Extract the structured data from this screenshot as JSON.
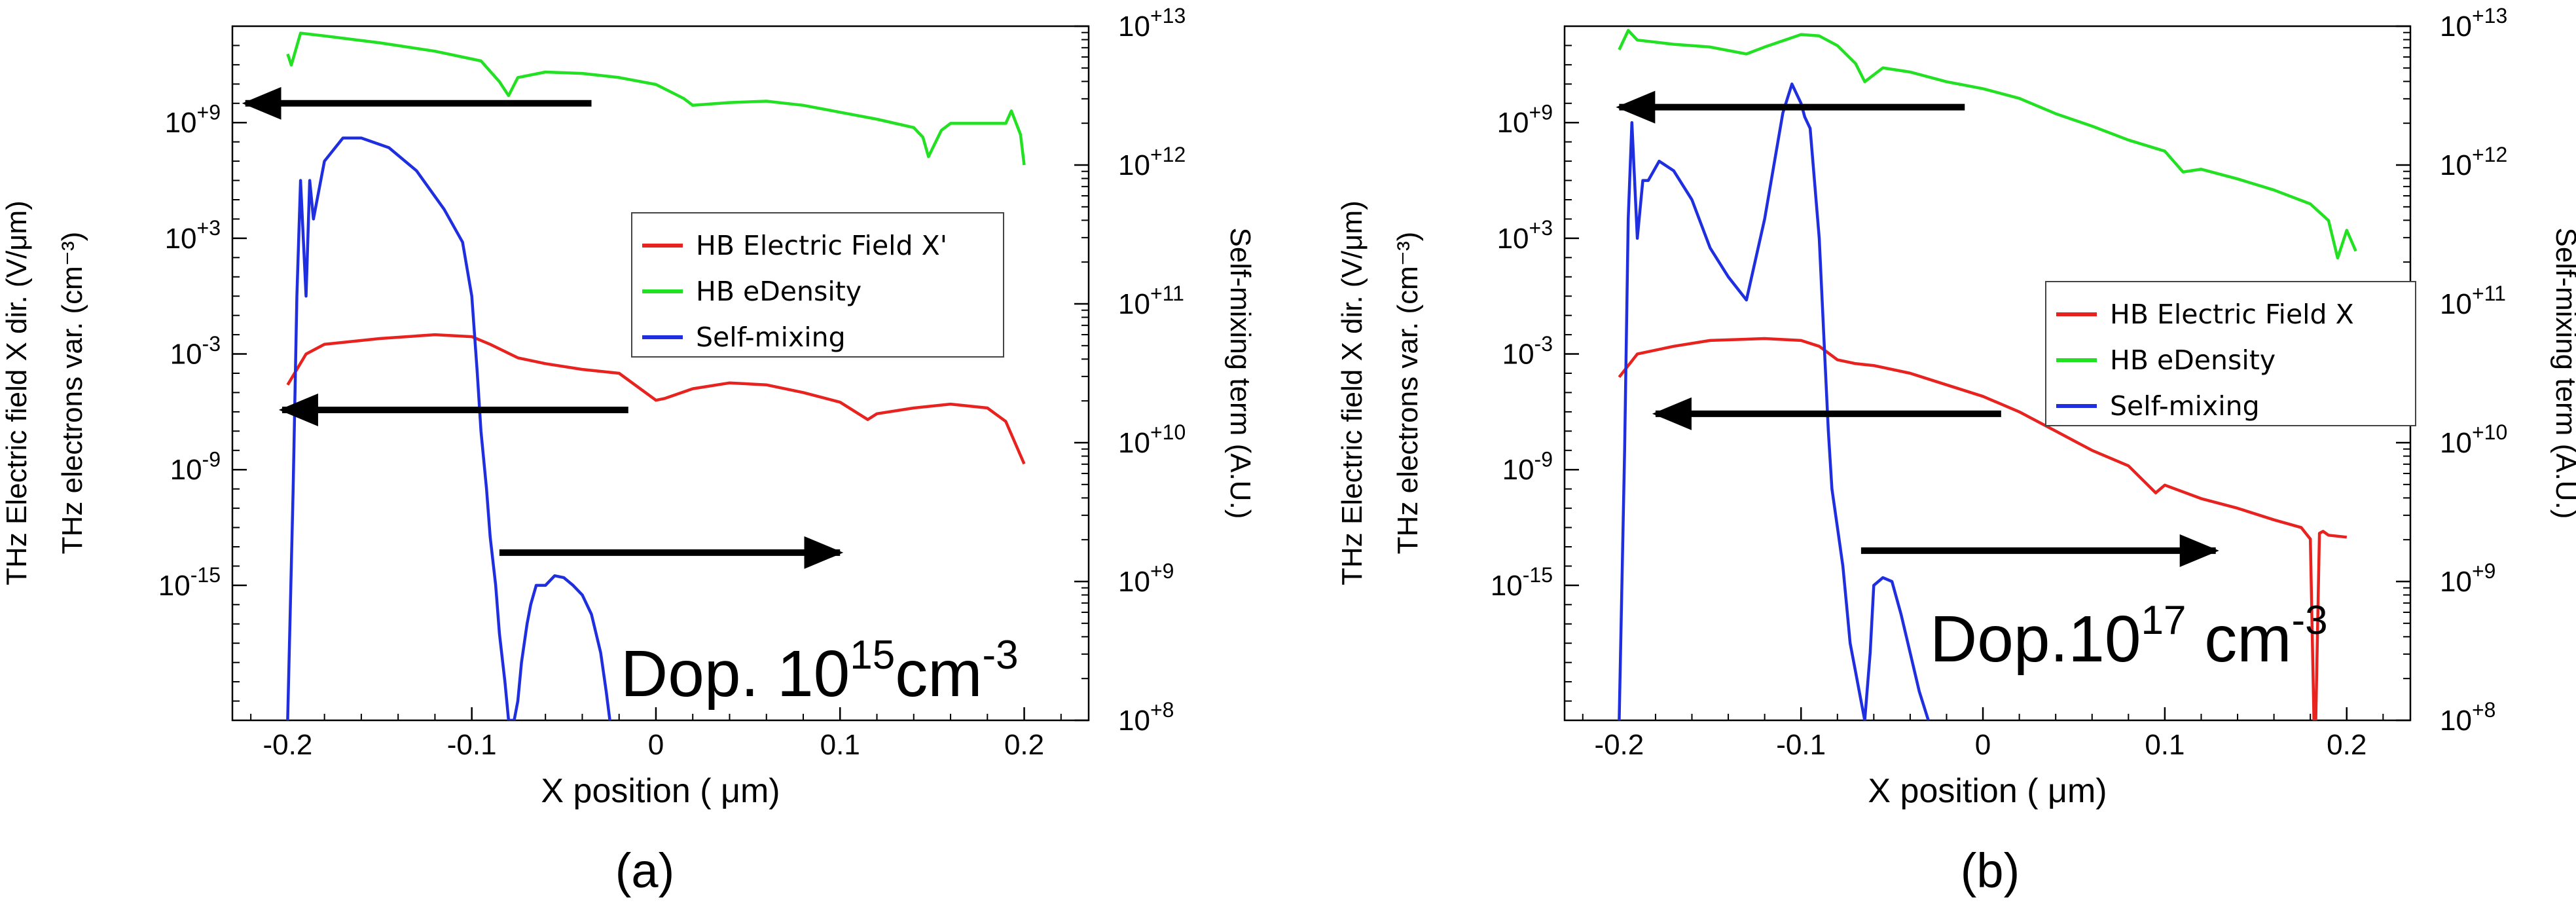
{
  "chart_data": [
    {
      "type": "line",
      "caption": "(a)",
      "annotation": {
        "prefix": "Dop. 10",
        "exp": "15",
        "unit": "cm",
        "unit_exp": "-3"
      },
      "xlabel": "X position ( μm)",
      "xlim": [
        -0.23,
        0.235
      ],
      "xticks": [
        "-0.2",
        "-0.1",
        "0",
        "0.1",
        "0.2"
      ],
      "ylabel_left_1": "THz Electric field X dir.  (V/μm)",
      "ylabel_left_2": "THz electrons var. (cm⁻³)",
      "ylabel_right": "Self-mixing term (A.U.)",
      "left_ticks": [
        {
          "exp": 9,
          "label": "10",
          "sup": "+9"
        },
        {
          "exp": 3,
          "label": "10",
          "sup": "+3"
        },
        {
          "exp": -3,
          "label": "10",
          "sup": "-3"
        },
        {
          "exp": -9,
          "label": "10",
          "sup": "-9"
        },
        {
          "exp": -15,
          "label": "10",
          "sup": "-15"
        }
      ],
      "left_range": [
        -22,
        14
      ],
      "right_ticks": [
        {
          "exp": 13,
          "label": "10",
          "sup": "+13"
        },
        {
          "exp": 12,
          "label": "10",
          "sup": "+12"
        },
        {
          "exp": 11,
          "label": "10",
          "sup": "+11"
        },
        {
          "exp": 10,
          "label": "10",
          "sup": "+10"
        },
        {
          "exp": 9,
          "label": "10",
          "sup": "+9"
        },
        {
          "exp": 8,
          "label": "10",
          "sup": "+8"
        }
      ],
      "right_range": [
        8,
        13
      ],
      "legend": [
        "HB Electric Field X'",
        "HB eDensity",
        "Self-mixing"
      ],
      "series": [
        {
          "name": "HB Electric Field X'",
          "color": "#e8221e",
          "axis": "left",
          "x": [
            -0.2,
            -0.19,
            -0.18,
            -0.15,
            -0.12,
            -0.1,
            -0.09,
            -0.075,
            -0.06,
            -0.04,
            -0.02,
            0.0,
            0.005,
            0.02,
            0.04,
            0.06,
            0.08,
            0.1,
            0.115,
            0.12,
            0.14,
            0.16,
            0.18,
            0.19,
            0.2
          ],
          "y": [
            -4.6,
            -3.0,
            -2.5,
            -2.2,
            -2.0,
            -2.1,
            -2.5,
            -3.2,
            -3.5,
            -3.8,
            -4.0,
            -5.4,
            -5.3,
            -4.8,
            -4.5,
            -4.6,
            -5.0,
            -5.5,
            -6.4,
            -6.1,
            -5.8,
            -5.6,
            -5.8,
            -6.5,
            -8.7
          ]
        },
        {
          "name": "HB eDensity",
          "color": "#22e022",
          "axis": "right",
          "x": [
            -0.2,
            -0.198,
            -0.193,
            -0.18,
            -0.15,
            -0.12,
            -0.095,
            -0.085,
            -0.08,
            -0.075,
            -0.06,
            -0.04,
            -0.02,
            0.0,
            0.015,
            0.02,
            0.04,
            0.06,
            0.08,
            0.1,
            0.12,
            0.14,
            0.145,
            0.148,
            0.155,
            0.16,
            0.18,
            0.19,
            0.193,
            0.198,
            0.2
          ],
          "y": [
            12.8,
            12.72,
            12.95,
            12.93,
            12.88,
            12.82,
            12.75,
            12.6,
            12.5,
            12.63,
            12.67,
            12.66,
            12.63,
            12.58,
            12.48,
            12.43,
            12.45,
            12.46,
            12.43,
            12.38,
            12.33,
            12.27,
            12.2,
            12.06,
            12.25,
            12.3,
            12.3,
            12.3,
            12.39,
            12.22,
            12.0
          ]
        },
        {
          "name": "Self-mixing",
          "color": "#1f2fe0",
          "axis": "left",
          "x": [
            -0.2,
            -0.197,
            -0.195,
            -0.193,
            -0.19,
            -0.188,
            -0.186,
            -0.18,
            -0.17,
            -0.16,
            -0.145,
            -0.13,
            -0.115,
            -0.105,
            -0.1,
            -0.097,
            -0.095,
            -0.092,
            -0.09,
            -0.087,
            -0.085,
            -0.082,
            -0.08,
            -0.077,
            -0.075,
            -0.073,
            -0.07,
            -0.068,
            -0.065,
            -0.06,
            -0.055,
            -0.05,
            -0.045,
            -0.04,
            -0.035,
            -0.03,
            -0.027,
            -0.025
          ],
          "y": [
            -22,
            -10,
            0,
            6,
            0,
            6,
            4,
            7,
            8.2,
            8.2,
            7.7,
            6.5,
            4.5,
            2.8,
            0,
            -4,
            -7,
            -10,
            -12.5,
            -15,
            -17.5,
            -20,
            -22,
            -22,
            -21,
            -19,
            -17,
            -16,
            -15,
            -15,
            -14.5,
            -14.6,
            -15,
            -15.5,
            -16.5,
            -18.5,
            -20.5,
            -22
          ]
        }
      ],
      "arrows": [
        {
          "from": [
            -0.035,
            10.0
          ],
          "to": [
            -0.223,
            10.0
          ],
          "axis": "left"
        },
        {
          "from": [
            -0.015,
            -5.9
          ],
          "to": [
            -0.203,
            -5.9
          ],
          "axis": "left"
        },
        {
          "from": [
            -0.085,
            -13.3
          ],
          "to": [
            0.1,
            -13.3
          ],
          "axis": "left"
        }
      ]
    },
    {
      "type": "line",
      "caption": "(b)",
      "annotation": {
        "prefix": "Dop.10",
        "exp": "17",
        "unit": " cm",
        "unit_exp": "-3"
      },
      "xlabel": "X position ( μm)",
      "xlim": [
        -0.23,
        0.235
      ],
      "xticks": [
        "-0.2",
        "-0.1",
        "0",
        "0.1",
        "0.2"
      ],
      "ylabel_left_1": "THz Electric field X dir.  (V/μm)",
      "ylabel_left_2": "THz electrons var. (cm⁻³)",
      "ylabel_right": "Self-mixing term (A.U.)",
      "left_ticks": [
        {
          "exp": 9,
          "label": "10",
          "sup": "+9"
        },
        {
          "exp": 3,
          "label": "10",
          "sup": "+3"
        },
        {
          "exp": -3,
          "label": "10",
          "sup": "-3"
        },
        {
          "exp": -9,
          "label": "10",
          "sup": "-9"
        },
        {
          "exp": -15,
          "label": "10",
          "sup": "-15"
        }
      ],
      "left_range": [
        -22,
        14
      ],
      "right_ticks": [
        {
          "exp": 13,
          "label": "10",
          "sup": "+13"
        },
        {
          "exp": 12,
          "label": "10",
          "sup": "+12"
        },
        {
          "exp": 11,
          "label": "10",
          "sup": "+11"
        },
        {
          "exp": 10,
          "label": "10",
          "sup": "+10"
        },
        {
          "exp": 9,
          "label": "10",
          "sup": "+9"
        },
        {
          "exp": 8,
          "label": "10",
          "sup": "+8"
        }
      ],
      "right_range": [
        8,
        13
      ],
      "legend": [
        "HB Electric Field X",
        "HB eDensity",
        "Self-mixing"
      ],
      "series": [
        {
          "name": "HB Electric Field X",
          "color": "#e8221e",
          "axis": "left",
          "x": [
            -0.2,
            -0.19,
            -0.17,
            -0.15,
            -0.12,
            -0.1,
            -0.09,
            -0.08,
            -0.07,
            -0.06,
            -0.04,
            -0.02,
            0.0,
            0.02,
            0.04,
            0.06,
            0.08,
            0.095,
            0.1,
            0.12,
            0.14,
            0.16,
            0.175,
            0.18,
            0.182,
            0.183,
            0.185,
            0.187,
            0.19,
            0.2
          ],
          "y": [
            -4.2,
            -3.0,
            -2.6,
            -2.3,
            -2.2,
            -2.3,
            -2.6,
            -3.3,
            -3.5,
            -3.6,
            -4.0,
            -4.6,
            -5.2,
            -6.0,
            -7.0,
            -8.0,
            -8.8,
            -10.2,
            -9.8,
            -10.5,
            -11.0,
            -11.6,
            -12.0,
            -12.6,
            -22,
            -22,
            -12.3,
            -12.2,
            -12.4,
            -12.5
          ]
        },
        {
          "name": "HB eDensity",
          "color": "#22e022",
          "axis": "right",
          "x": [
            -0.2,
            -0.195,
            -0.19,
            -0.17,
            -0.15,
            -0.13,
            -0.12,
            -0.1,
            -0.09,
            -0.08,
            -0.07,
            -0.065,
            -0.055,
            -0.04,
            -0.02,
            0.0,
            0.02,
            0.04,
            0.06,
            0.08,
            0.1,
            0.11,
            0.12,
            0.14,
            0.16,
            0.18,
            0.19,
            0.195,
            0.2,
            0.205
          ],
          "y": [
            12.83,
            12.97,
            12.9,
            12.87,
            12.85,
            12.8,
            12.85,
            12.94,
            12.93,
            12.86,
            12.73,
            12.6,
            12.7,
            12.67,
            12.6,
            12.55,
            12.48,
            12.37,
            12.28,
            12.18,
            12.1,
            11.95,
            11.97,
            11.9,
            11.82,
            11.72,
            11.6,
            11.33,
            11.53,
            11.38
          ]
        },
        {
          "name": "Self-mixing",
          "color": "#1f2fe0",
          "axis": "left",
          "x": [
            -0.2,
            -0.197,
            -0.195,
            -0.193,
            -0.19,
            -0.187,
            -0.184,
            -0.178,
            -0.17,
            -0.16,
            -0.15,
            -0.14,
            -0.13,
            -0.12,
            -0.11,
            -0.105,
            -0.1,
            -0.098,
            -0.095,
            -0.09,
            -0.087,
            -0.085,
            -0.083,
            -0.08,
            -0.077,
            -0.075,
            -0.073,
            -0.07,
            -0.067,
            -0.065,
            -0.062,
            -0.06,
            -0.055,
            -0.05,
            -0.045,
            -0.04,
            -0.035,
            -0.03
          ],
          "y": [
            -22,
            -8,
            4,
            9,
            3,
            6,
            6,
            7,
            6.5,
            5.0,
            2.5,
            1.0,
            -0.2,
            4.0,
            9.5,
            11.0,
            10.0,
            9.3,
            8.7,
            3.0,
            -3.0,
            -7,
            -10,
            -12,
            -14,
            -16,
            -18,
            -19.5,
            -21,
            -22,
            -18.5,
            -15,
            -14.6,
            -14.8,
            -16.5,
            -18.5,
            -20.5,
            -22
          ]
        }
      ],
      "arrows": [
        {
          "from": [
            -0.01,
            9.8
          ],
          "to": [
            -0.2,
            9.8
          ],
          "axis": "left"
        },
        {
          "from": [
            0.01,
            -6.1
          ],
          "to": [
            -0.18,
            -6.1
          ],
          "axis": "left"
        },
        {
          "from": [
            -0.067,
            -13.2
          ],
          "to": [
            0.128,
            -13.2
          ],
          "axis": "left"
        }
      ]
    }
  ]
}
